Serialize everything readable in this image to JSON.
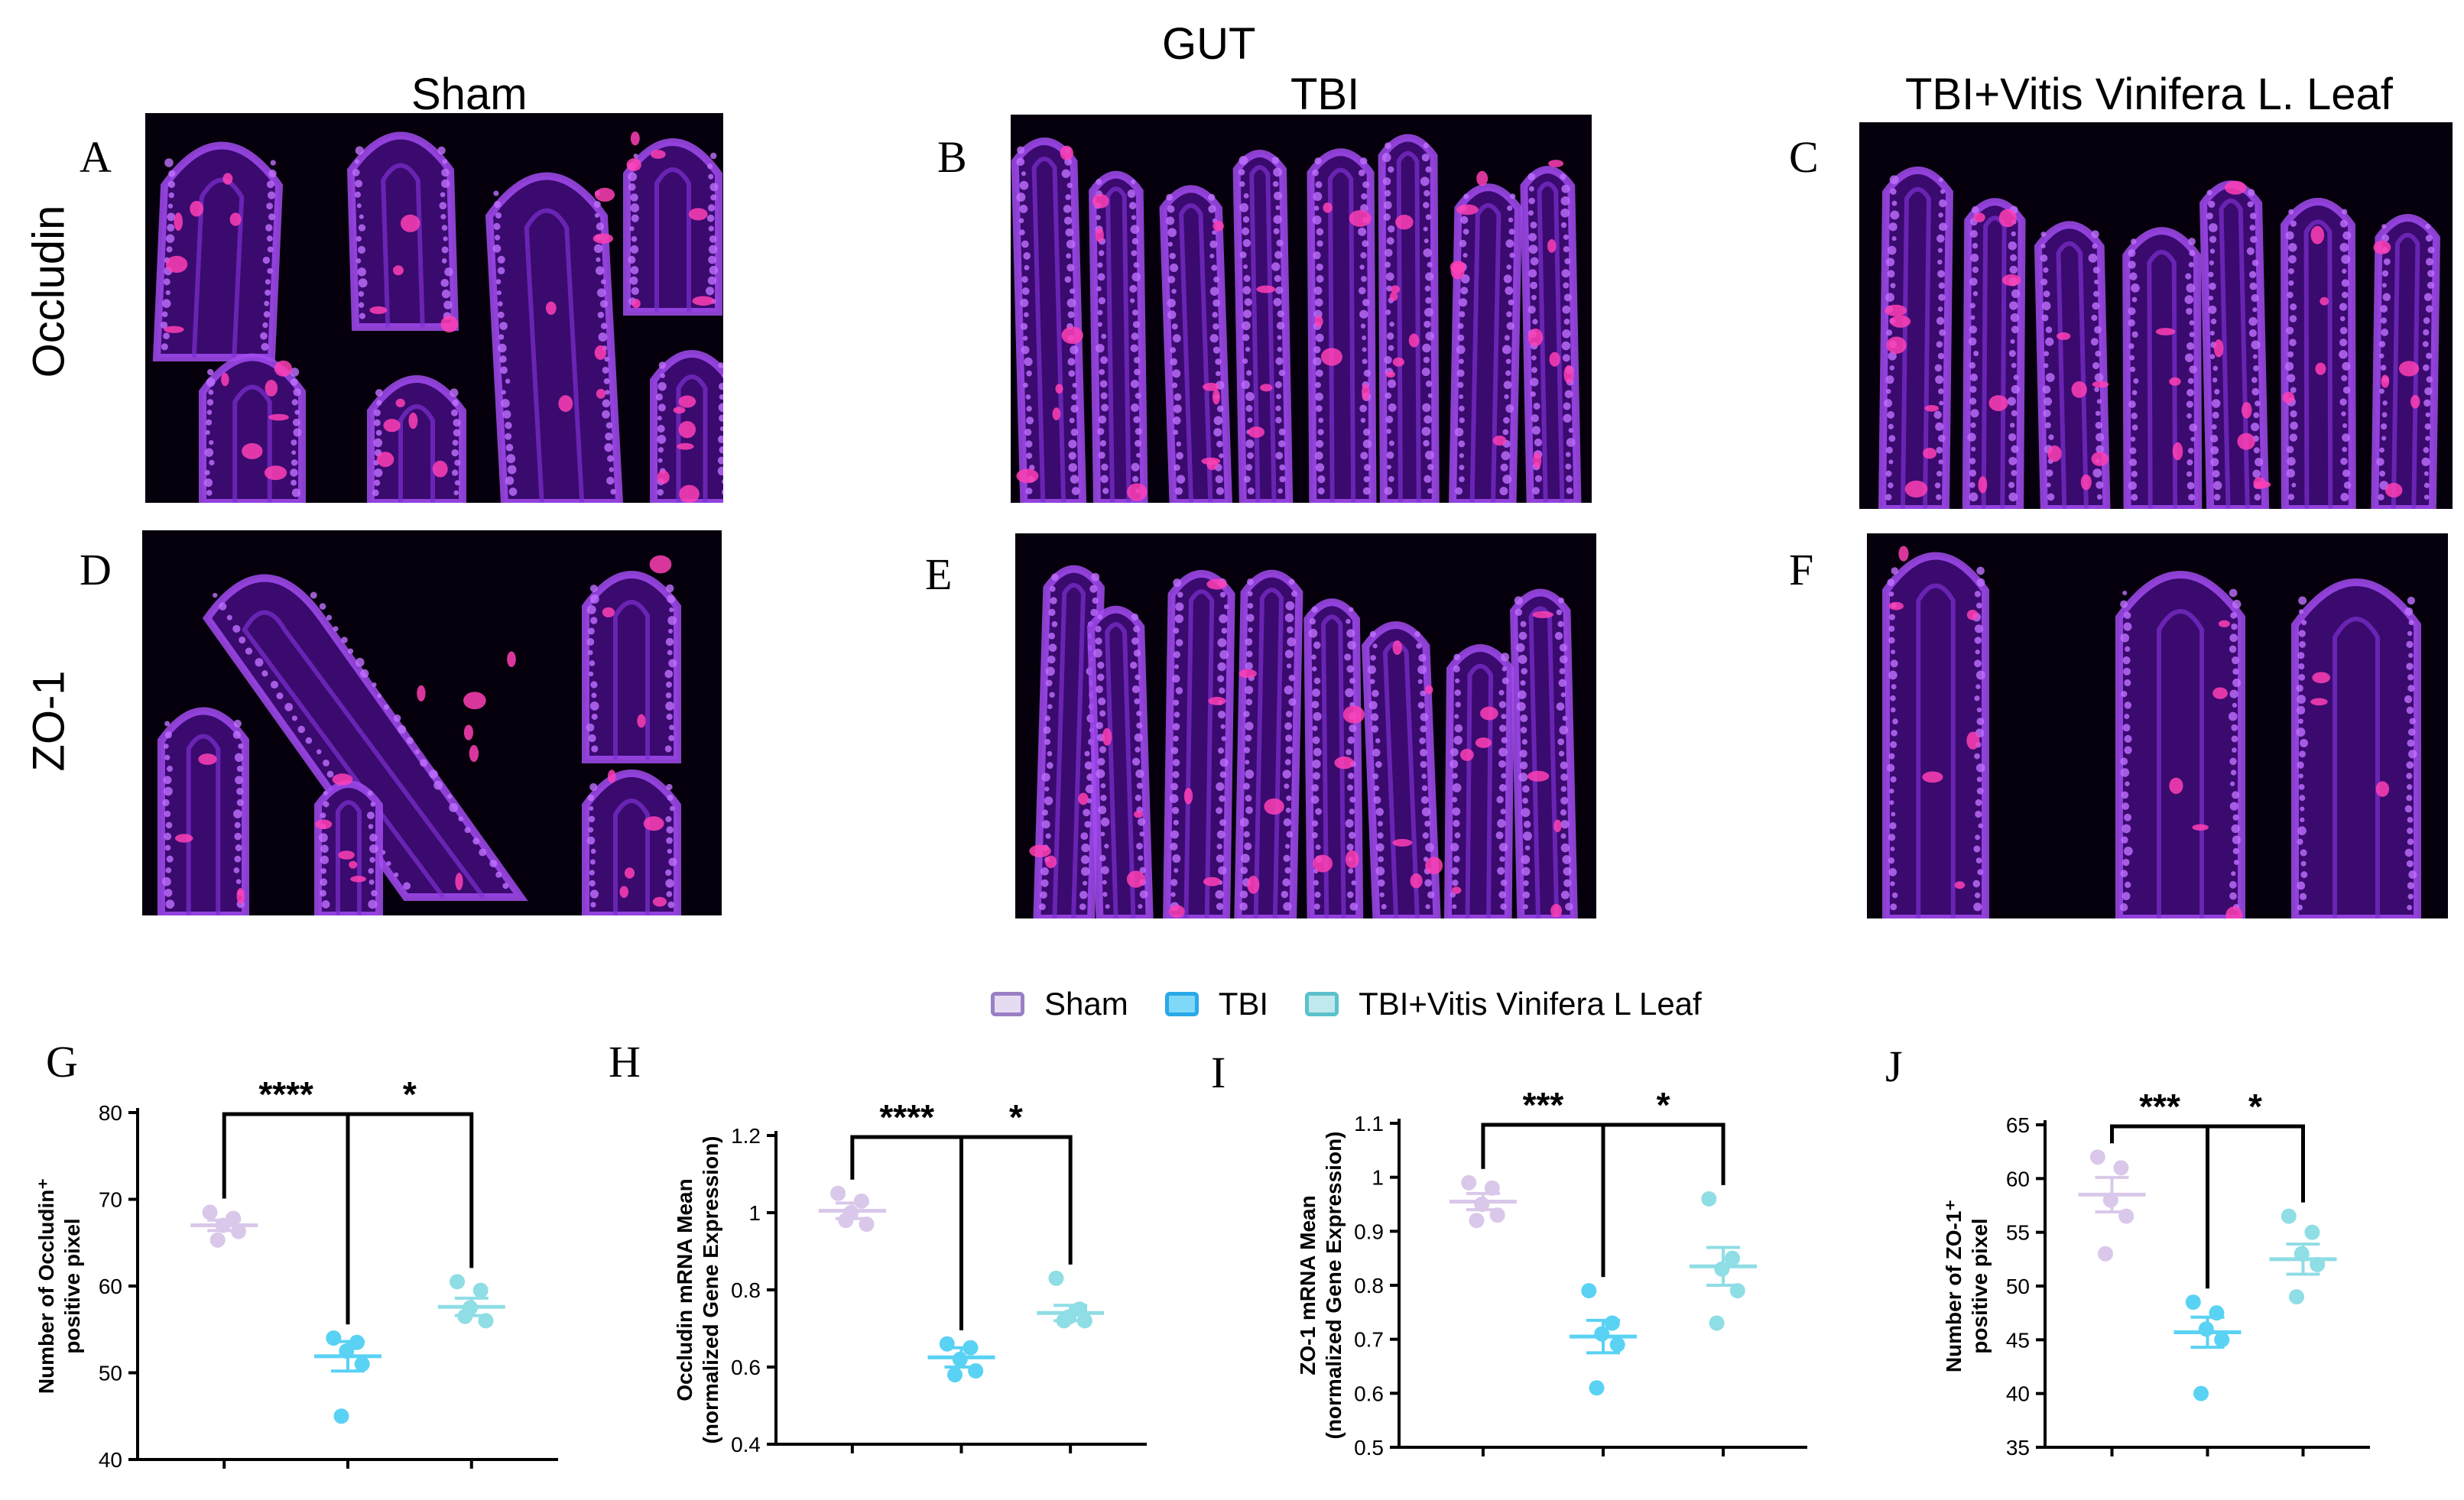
{
  "figure": {
    "title": "GUT",
    "columns": [
      "Sham",
      "TBI",
      "TBI+Vitis Vinifera L. Leaf"
    ],
    "rows": [
      "Occludin",
      "ZO-1"
    ],
    "image_panels": [
      {
        "letter": "A",
        "label": "Occludin Sham micrograph"
      },
      {
        "letter": "B",
        "label": "Occludin TBI micrograph"
      },
      {
        "letter": "C",
        "label": "Occludin TBI+Vitis micrograph"
      },
      {
        "letter": "D",
        "label": "ZO-1 Sham micrograph"
      },
      {
        "letter": "E",
        "label": "ZO-1 TBI micrograph"
      },
      {
        "letter": "F",
        "label": "ZO-1 TBI+Vitis micrograph"
      }
    ]
  },
  "legend": {
    "items": [
      {
        "label": "Sham",
        "color": "#9b7fc4",
        "fill": "#e6dcf2"
      },
      {
        "label": "TBI",
        "color": "#2aa8e8",
        "fill": "#7fd8f7"
      },
      {
        "label": "TBI+Vitis Vinifera L Leaf",
        "color": "#5cc0cc",
        "fill": "#bfe9ec"
      }
    ]
  },
  "colors": {
    "sham": "#d9c8ea",
    "tbi": "#59d2f4",
    "vitis": "#8fdde5",
    "bracket": "#000000"
  },
  "chart_data": [
    {
      "letter": "G",
      "type": "scatter",
      "ylabel_lines": [
        "Number of Occludin⁺",
        "positive pixel"
      ],
      "ylim": [
        40,
        80
      ],
      "yticks": [
        40,
        50,
        60,
        70,
        80
      ],
      "groups": [
        {
          "name": "Sham",
          "points": [
            68.5,
            67.8,
            67.0,
            66.3,
            65.3
          ],
          "mean": 67.0,
          "sem": 0.6
        },
        {
          "name": "TBI",
          "points": [
            54.0,
            53.5,
            52.5,
            51.0,
            45.0
          ],
          "mean": 51.9,
          "sem": 1.7
        },
        {
          "name": "TBI+Vitis Vinifera L Leaf",
          "points": [
            60.5,
            59.5,
            57.5,
            56.0,
            56.5
          ],
          "mean": 57.6,
          "sem": 1.0
        }
      ],
      "comparisons": [
        {
          "from": 0,
          "to": 1,
          "label": "****"
        },
        {
          "from": 1,
          "to": 2,
          "label": "*"
        }
      ]
    },
    {
      "letter": "H",
      "type": "scatter",
      "ylabel_lines": [
        "Occludin mRNA Mean",
        "(normalized Gene Expression)"
      ],
      "ylim": [
        0.4,
        1.2
      ],
      "yticks": [
        0.4,
        0.6,
        0.8,
        1.0,
        1.2
      ],
      "groups": [
        {
          "name": "Sham",
          "points": [
            1.05,
            1.03,
            1.0,
            0.97,
            0.98
          ],
          "mean": 1.005,
          "sem": 0.02
        },
        {
          "name": "TBI",
          "points": [
            0.66,
            0.65,
            0.62,
            0.59,
            0.58
          ],
          "mean": 0.625,
          "sem": 0.025
        },
        {
          "name": "TBI+Vitis Vinifera L Leaf",
          "points": [
            0.83,
            0.75,
            0.73,
            0.72,
            0.72
          ],
          "mean": 0.74,
          "sem": 0.02
        }
      ],
      "comparisons": [
        {
          "from": 0,
          "to": 1,
          "label": "****"
        },
        {
          "from": 1,
          "to": 2,
          "label": "*"
        }
      ]
    },
    {
      "letter": "I",
      "type": "scatter",
      "ylabel_lines": [
        "ZO-1 mRNA Mean",
        "(normalized Gene Expression)"
      ],
      "ylim": [
        0.5,
        1.1
      ],
      "yticks": [
        0.5,
        0.6,
        0.7,
        0.8,
        0.9,
        1.0,
        1.1
      ],
      "groups": [
        {
          "name": "Sham",
          "points": [
            0.99,
            0.98,
            0.95,
            0.93,
            0.92
          ],
          "mean": 0.955,
          "sem": 0.015
        },
        {
          "name": "TBI",
          "points": [
            0.79,
            0.73,
            0.71,
            0.69,
            0.61
          ],
          "mean": 0.705,
          "sem": 0.03
        },
        {
          "name": "TBI+Vitis Vinifera L Leaf",
          "points": [
            0.96,
            0.85,
            0.83,
            0.79,
            0.73
          ],
          "mean": 0.835,
          "sem": 0.035
        }
      ],
      "comparisons": [
        {
          "from": 0,
          "to": 1,
          "label": "***"
        },
        {
          "from": 1,
          "to": 2,
          "label": "*"
        }
      ]
    },
    {
      "letter": "J",
      "type": "scatter",
      "ylabel_lines": [
        "Number of  ZO-1⁺",
        "positive pixel"
      ],
      "ylim": [
        35,
        65
      ],
      "yticks": [
        35,
        40,
        45,
        50,
        55,
        60,
        65
      ],
      "groups": [
        {
          "name": "Sham",
          "points": [
            62.0,
            61.0,
            58.0,
            56.5,
            53.0
          ],
          "mean": 58.5,
          "sem": 1.6
        },
        {
          "name": "TBI",
          "points": [
            48.5,
            47.5,
            46.0,
            45.0,
            40.0
          ],
          "mean": 45.7,
          "sem": 1.4
        },
        {
          "name": "TBI+Vitis Vinifera L Leaf",
          "points": [
            56.5,
            55.0,
            53.0,
            52.0,
            49.0
          ],
          "mean": 52.5,
          "sem": 1.4
        }
      ],
      "comparisons": [
        {
          "from": 0,
          "to": 1,
          "label": "***"
        },
        {
          "from": 1,
          "to": 2,
          "label": "*"
        }
      ]
    }
  ]
}
